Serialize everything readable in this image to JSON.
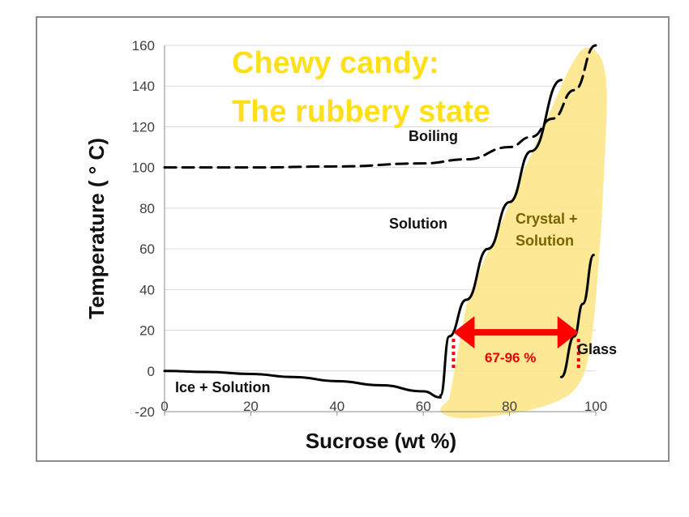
{
  "chart_data": {
    "type": "line",
    "title_line1": "Chewy candy:",
    "title_line2": "The rubbery state",
    "xlabel": "Sucrose (wt %)",
    "ylabel": "Temperature ( ° C)",
    "xlim": [
      0,
      100
    ],
    "ylim": [
      -20,
      160
    ],
    "x_ticks": [
      "0",
      "20",
      "40",
      "60",
      "80",
      "100"
    ],
    "y_ticks": [
      "-20",
      "0",
      "20",
      "40",
      "60",
      "80",
      "100",
      "120",
      "140",
      "160"
    ],
    "grid": true,
    "series": [
      {
        "id": "boiling",
        "style": "dashed",
        "x": [
          0,
          20,
          40,
          60,
          70,
          80,
          85,
          90,
          95,
          100
        ],
        "y": [
          100,
          100,
          100.5,
          102,
          104,
          110,
          115,
          124,
          138,
          160
        ]
      },
      {
        "id": "solubility",
        "style": "solid",
        "x": [
          64,
          66,
          70,
          75,
          80,
          85,
          92
        ],
        "y": [
          -12,
          17,
          35,
          60,
          83,
          108,
          143
        ]
      },
      {
        "id": "freezing",
        "style": "solid",
        "x": [
          0,
          10,
          20,
          30,
          40,
          50,
          60,
          64
        ],
        "y": [
          0,
          -0.5,
          -1.5,
          -3,
          -5,
          -7,
          -10,
          -13
        ]
      },
      {
        "id": "glass",
        "style": "solid",
        "x": [
          92,
          95,
          97,
          99.5
        ],
        "y": [
          -3,
          17,
          33,
          57
        ]
      }
    ],
    "annotations": {
      "boiling": "Boiling",
      "solution": "Solution",
      "crystal_solution_line1": "Crystal +",
      "crystal_solution_line2": "Solution",
      "glass": "Glass",
      "ice_solution": "Ice + Solution",
      "range": "67-96 %"
    },
    "range": {
      "x_from": 67,
      "x_to": 96,
      "y": 19
    },
    "colors": {
      "highlight": "#fde68a",
      "range_arrow": "#ff0000",
      "title": "#ffdf1a",
      "line": "#000000",
      "grid": "#d9d9d9"
    }
  }
}
